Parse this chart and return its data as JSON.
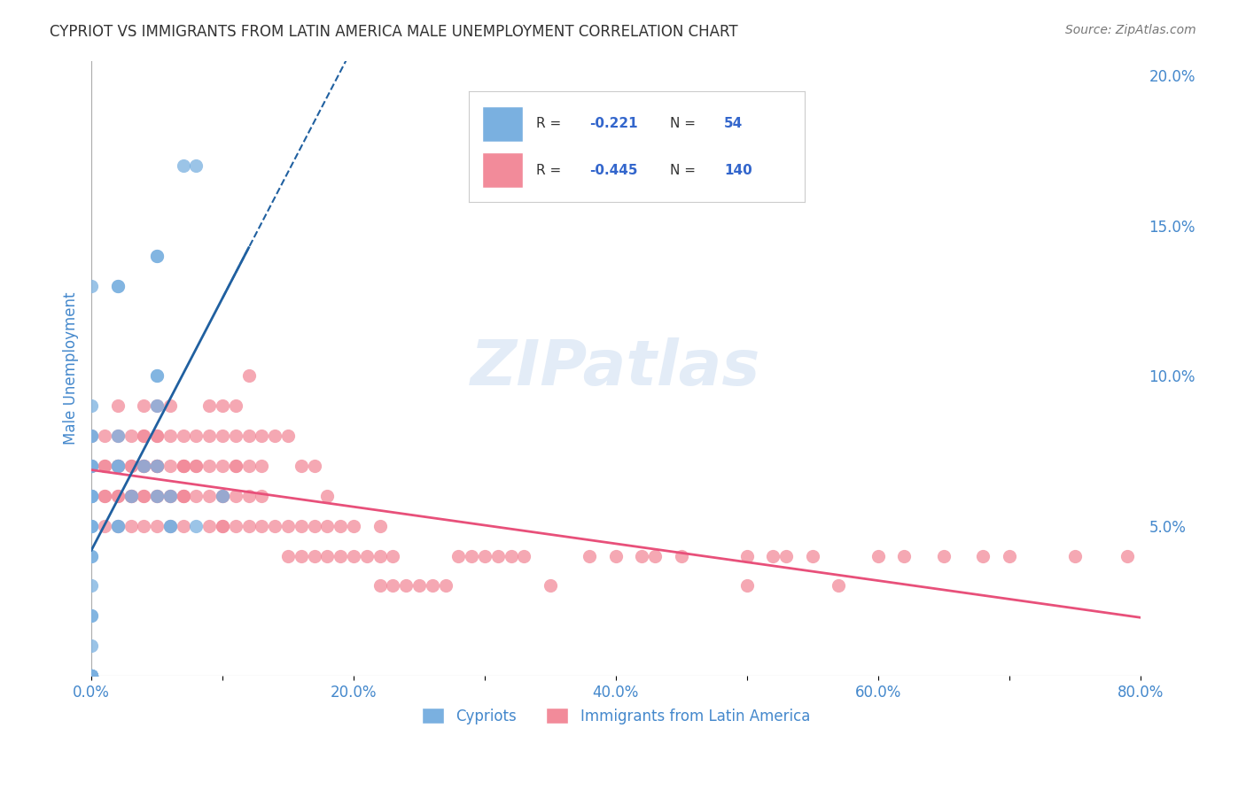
{
  "title": "CYPRIOT VS IMMIGRANTS FROM LATIN AMERICA MALE UNEMPLOYMENT CORRELATION CHART",
  "source": "Source: ZipAtlas.com",
  "ylabel": "Male Unemployment",
  "xlabel": "",
  "xlim": [
    0.0,
    0.8
  ],
  "ylim": [
    0.0,
    0.205
  ],
  "xticks": [
    0.0,
    0.1,
    0.2,
    0.3,
    0.4,
    0.5,
    0.6,
    0.7,
    0.8
  ],
  "xticklabels": [
    "0.0%",
    "",
    "20.0%",
    "",
    "40.0%",
    "",
    "60.0%",
    "",
    "80.0%"
  ],
  "yticks_right": [
    0.0,
    0.05,
    0.1,
    0.15,
    0.2
  ],
  "ytick_right_labels": [
    "",
    "5.0%",
    "10.0%",
    "15.0%",
    "20.0%"
  ],
  "legend_R1": "-0.221",
  "legend_N1": "54",
  "legend_R2": "-0.445",
  "legend_N2": "140",
  "color_cypriot": "#7ab0e0",
  "color_latin": "#f28b9a",
  "color_trend_cypriot": "#2060a0",
  "color_trend_latin": "#e8507a",
  "color_axis_labels": "#4488cc",
  "color_title": "#333333",
  "watermark_text": "ZIPatlas",
  "cypriot_x": [
    0.0,
    0.0,
    0.0,
    0.0,
    0.0,
    0.0,
    0.0,
    0.0,
    0.0,
    0.0,
    0.0,
    0.0,
    0.0,
    0.0,
    0.0,
    0.0,
    0.0,
    0.0,
    0.0,
    0.0,
    0.0,
    0.0,
    0.0,
    0.0,
    0.0,
    0.0,
    0.0,
    0.0,
    0.0,
    0.0,
    0.0,
    0.02,
    0.02,
    0.02,
    0.02,
    0.02,
    0.02,
    0.02,
    0.03,
    0.04,
    0.05,
    0.05,
    0.05,
    0.05,
    0.05,
    0.05,
    0.05,
    0.06,
    0.06,
    0.06,
    0.07,
    0.08,
    0.08,
    0.1
  ],
  "cypriot_y": [
    0.0,
    0.0,
    0.0,
    0.0,
    0.0,
    0.0,
    0.0,
    0.0,
    0.0,
    0.0,
    0.0,
    0.01,
    0.02,
    0.02,
    0.03,
    0.04,
    0.04,
    0.05,
    0.05,
    0.05,
    0.06,
    0.06,
    0.06,
    0.06,
    0.07,
    0.07,
    0.07,
    0.08,
    0.08,
    0.09,
    0.13,
    0.07,
    0.07,
    0.08,
    0.13,
    0.13,
    0.05,
    0.05,
    0.06,
    0.07,
    0.06,
    0.07,
    0.09,
    0.1,
    0.1,
    0.14,
    0.14,
    0.05,
    0.05,
    0.06,
    0.17,
    0.17,
    0.05,
    0.06
  ],
  "latin_x": [
    0.0,
    0.0,
    0.0,
    0.01,
    0.01,
    0.01,
    0.01,
    0.01,
    0.01,
    0.02,
    0.02,
    0.02,
    0.02,
    0.02,
    0.02,
    0.02,
    0.02,
    0.03,
    0.03,
    0.03,
    0.03,
    0.03,
    0.03,
    0.03,
    0.04,
    0.04,
    0.04,
    0.04,
    0.04,
    0.04,
    0.04,
    0.04,
    0.04,
    0.05,
    0.05,
    0.05,
    0.05,
    0.05,
    0.05,
    0.05,
    0.05,
    0.05,
    0.05,
    0.06,
    0.06,
    0.06,
    0.06,
    0.06,
    0.06,
    0.07,
    0.07,
    0.07,
    0.07,
    0.07,
    0.07,
    0.07,
    0.07,
    0.08,
    0.08,
    0.08,
    0.08,
    0.09,
    0.09,
    0.09,
    0.09,
    0.09,
    0.1,
    0.1,
    0.1,
    0.1,
    0.1,
    0.1,
    0.1,
    0.11,
    0.11,
    0.11,
    0.11,
    0.11,
    0.11,
    0.12,
    0.12,
    0.12,
    0.12,
    0.12,
    0.13,
    0.13,
    0.13,
    0.13,
    0.14,
    0.14,
    0.15,
    0.15,
    0.15,
    0.16,
    0.16,
    0.16,
    0.17,
    0.17,
    0.17,
    0.18,
    0.18,
    0.18,
    0.19,
    0.19,
    0.2,
    0.2,
    0.21,
    0.22,
    0.22,
    0.22,
    0.23,
    0.23,
    0.24,
    0.25,
    0.26,
    0.27,
    0.28,
    0.29,
    0.3,
    0.31,
    0.32,
    0.33,
    0.35,
    0.38,
    0.4,
    0.42,
    0.43,
    0.45,
    0.5,
    0.5,
    0.52,
    0.53,
    0.55,
    0.57,
    0.6,
    0.62,
    0.65,
    0.68,
    0.7,
    0.75,
    0.79
  ],
  "latin_y": [
    0.06,
    0.07,
    0.08,
    0.05,
    0.06,
    0.06,
    0.07,
    0.07,
    0.08,
    0.05,
    0.06,
    0.06,
    0.07,
    0.07,
    0.07,
    0.08,
    0.09,
    0.05,
    0.06,
    0.06,
    0.06,
    0.07,
    0.07,
    0.08,
    0.05,
    0.06,
    0.06,
    0.07,
    0.07,
    0.07,
    0.08,
    0.08,
    0.09,
    0.05,
    0.06,
    0.06,
    0.07,
    0.07,
    0.07,
    0.07,
    0.08,
    0.08,
    0.09,
    0.05,
    0.06,
    0.06,
    0.07,
    0.08,
    0.09,
    0.05,
    0.06,
    0.06,
    0.06,
    0.07,
    0.07,
    0.07,
    0.08,
    0.06,
    0.07,
    0.07,
    0.08,
    0.05,
    0.06,
    0.07,
    0.08,
    0.09,
    0.05,
    0.05,
    0.06,
    0.06,
    0.07,
    0.08,
    0.09,
    0.05,
    0.06,
    0.07,
    0.07,
    0.08,
    0.09,
    0.05,
    0.06,
    0.07,
    0.08,
    0.1,
    0.05,
    0.06,
    0.07,
    0.08,
    0.05,
    0.08,
    0.04,
    0.05,
    0.08,
    0.04,
    0.05,
    0.07,
    0.04,
    0.05,
    0.07,
    0.04,
    0.05,
    0.06,
    0.04,
    0.05,
    0.04,
    0.05,
    0.04,
    0.03,
    0.04,
    0.05,
    0.03,
    0.04,
    0.03,
    0.03,
    0.03,
    0.03,
    0.04,
    0.04,
    0.04,
    0.04,
    0.04,
    0.04,
    0.03,
    0.04,
    0.04,
    0.04,
    0.04,
    0.04,
    0.03,
    0.04,
    0.04,
    0.04,
    0.04,
    0.03,
    0.04,
    0.04,
    0.04,
    0.04,
    0.04,
    0.04,
    0.04
  ]
}
